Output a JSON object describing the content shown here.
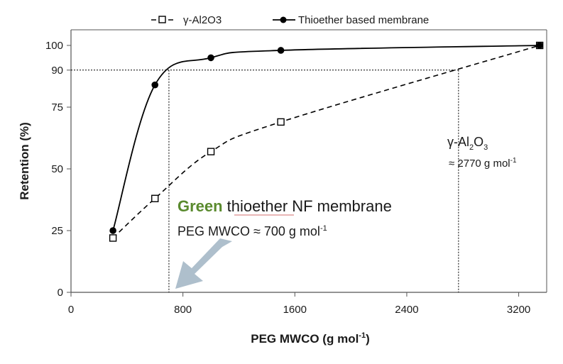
{
  "chart_data": {
    "type": "line",
    "xlabel": "PEG MWCO (g mol",
    "xlabel_sup": "-1",
    "xlabel_end": ")",
    "ylabel": "Retention (%)",
    "xlim": [
      0,
      3400
    ],
    "ylim": [
      0,
      100
    ],
    "x_ticks": [
      0,
      800,
      1600,
      2400,
      3200
    ],
    "y_ticks": [
      0,
      25,
      50,
      75,
      90,
      100
    ],
    "legend_position": "top",
    "grid": false,
    "series": [
      {
        "name": "γ-Al2O3",
        "style": "dashed",
        "marker": "open-square",
        "color": "#000000",
        "x": [
          300,
          600,
          1000,
          1500,
          3350
        ],
        "y": [
          22,
          38,
          57,
          69,
          100
        ]
      },
      {
        "name": "Thioether based membrane",
        "style": "solid",
        "marker": "filled-circle",
        "color": "#000000",
        "x": [
          300,
          600,
          1000,
          1500,
          3350
        ],
        "y": [
          25,
          84,
          95,
          98,
          100
        ]
      }
    ],
    "reference_lines": {
      "horizontal_y": 90,
      "vertical_x": [
        700,
        2770
      ]
    },
    "annotations": {
      "green_word": "Green",
      "green_color": "#5a8a2e",
      "thioether_word": "thioether",
      "nf_text": "NF membrane",
      "mwco_text": "PEG MWCO ≈ 700 g mol",
      "mwco_sup": "-1",
      "alumina_prefix": "γ-Al",
      "alumina_sub1": "2",
      "alumina_mid": "O",
      "alumina_sub2": "3",
      "alumina_value": "≈ 2770 g mol",
      "alumina_sup": "-1",
      "arrow_color": "#aebfcc"
    }
  }
}
